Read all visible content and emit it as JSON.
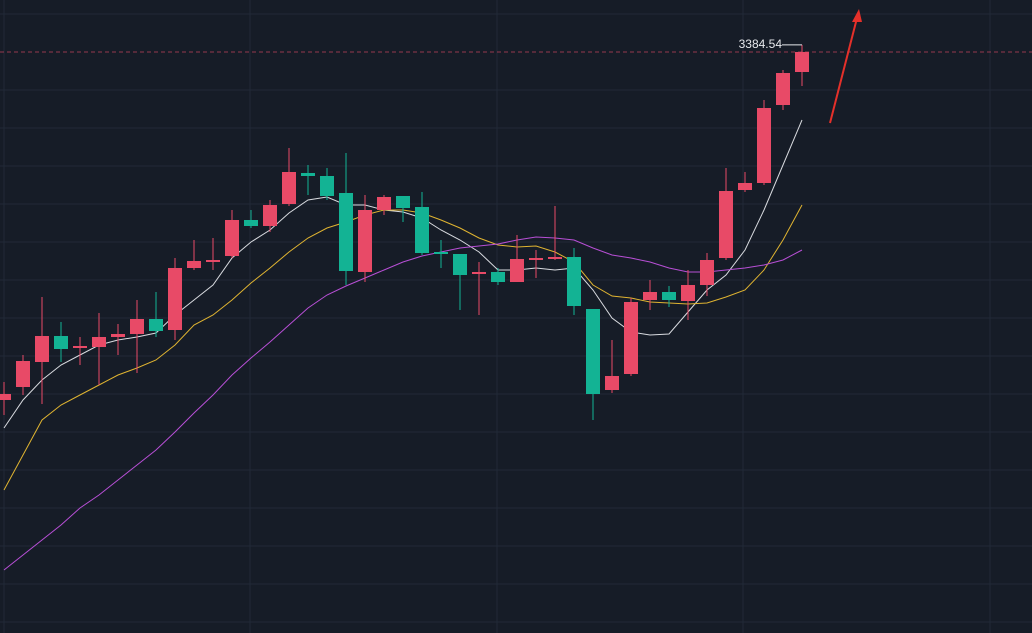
{
  "chart_data": {
    "type": "candlestick",
    "ylim": [
      3090.5,
      3407
    ],
    "up_color": "#e84a67",
    "down_color": "#13b394",
    "open": [
      3207,
      3213.5,
      3226,
      3239,
      3233,
      3233.5,
      3238.5,
      3240,
      3247.5,
      3242,
      3273,
      3276,
      3279,
      3297,
      3294,
      3305,
      3320.5,
      3319,
      3310.5,
      3271,
      3302,
      3309,
      3303.5,
      3281,
      3280,
      3270,
      3271,
      3266,
      3277,
      3277.5,
      3278.5,
      3252.5,
      3212,
      3220,
      3257,
      3261,
      3256.5,
      3264.5,
      3278,
      3312,
      3315.5,
      3354.5,
      3371
    ],
    "high": [
      3216,
      3229.5,
      3258.5,
      3246,
      3238.5,
      3250.5,
      3245,
      3257,
      3261,
      3278,
      3287,
      3288,
      3302,
      3302,
      3307,
      3333,
      3324.5,
      3323,
      3330.5,
      3309.5,
      3309.5,
      3309,
      3311,
      3287,
      3280,
      3276,
      3273,
      3289.5,
      3282,
      3304,
      3283,
      3252.5,
      3237,
      3258,
      3267,
      3264,
      3272,
      3280.5,
      3323,
      3321,
      3357,
      3372,
      3384.54
    ],
    "low": [
      3199.5,
      3209.5,
      3205,
      3226,
      3224.5,
      3214.5,
      3229.5,
      3220.5,
      3238.5,
      3237,
      3272,
      3272,
      3278,
      3293,
      3291,
      3304,
      3309.5,
      3307,
      3264.5,
      3266,
      3299.5,
      3296,
      3279.5,
      3273,
      3252,
      3249.5,
      3264.5,
      3266,
      3268,
      3277,
      3249.5,
      3197,
      3210.5,
      3219,
      3252,
      3253.5,
      3247,
      3259,
      3277,
      3311,
      3314.5,
      3352,
      3364
    ],
    "close": [
      3210,
      3226.5,
      3239,
      3232.5,
      3234,
      3238.5,
      3240,
      3247.5,
      3241.5,
      3273,
      3276.5,
      3277,
      3297,
      3294,
      3304.5,
      3321,
      3319,
      3309,
      3271.5,
      3302,
      3308.5,
      3303,
      3280.5,
      3280,
      3269.5,
      3271,
      3266,
      3277.5,
      3278,
      3278.5,
      3254,
      3210,
      3219,
      3256,
      3261,
      3257,
      3264.5,
      3277,
      3311.5,
      3315.5,
      3353,
      3370.5,
      3381
    ],
    "series": [
      {
        "color": "#d9dbe0",
        "values": [
          3193,
          3207,
          3217,
          3224.5,
          3229.5,
          3234.5,
          3237,
          3238.5,
          3240.5,
          3249.5,
          3257,
          3264.5,
          3278,
          3286,
          3292,
          3300.5,
          3307,
          3308.5,
          3304.5,
          3304.5,
          3302,
          3301,
          3298,
          3292,
          3287,
          3281,
          3272,
          3272,
          3273,
          3272,
          3273,
          3262,
          3248,
          3241,
          3239.5,
          3240,
          3251,
          3262,
          3269.5,
          3282,
          3302,
          3324.5,
          3347
        ]
      },
      {
        "color": "#e0b431",
        "values": [
          3162,
          3179.5,
          3197,
          3204.5,
          3209.5,
          3214.5,
          3219.5,
          3223,
          3227,
          3234.5,
          3244.5,
          3249.5,
          3257,
          3265.5,
          3273,
          3281,
          3288,
          3293,
          3296,
          3299.5,
          3302,
          3302,
          3300.5,
          3297,
          3293,
          3288,
          3284.5,
          3283.5,
          3284,
          3281,
          3276,
          3264.5,
          3259,
          3258,
          3256,
          3255.5,
          3255,
          3255.5,
          3258.5,
          3262,
          3272,
          3287,
          3304.5
        ]
      },
      {
        "color": "#b84fd6",
        "values": [
          3122,
          3129.5,
          3137,
          3144.5,
          3153,
          3159.5,
          3167,
          3174.5,
          3182,
          3191,
          3200.5,
          3209.5,
          3219.5,
          3228,
          3236,
          3244.5,
          3253,
          3259.5,
          3264,
          3268,
          3272,
          3276,
          3279,
          3281,
          3283,
          3284,
          3285,
          3287,
          3288.5,
          3288,
          3287,
          3283,
          3279.5,
          3278,
          3276,
          3273,
          3271,
          3271,
          3272,
          3273,
          3274.5,
          3277,
          3282
        ]
      }
    ]
  }
}
